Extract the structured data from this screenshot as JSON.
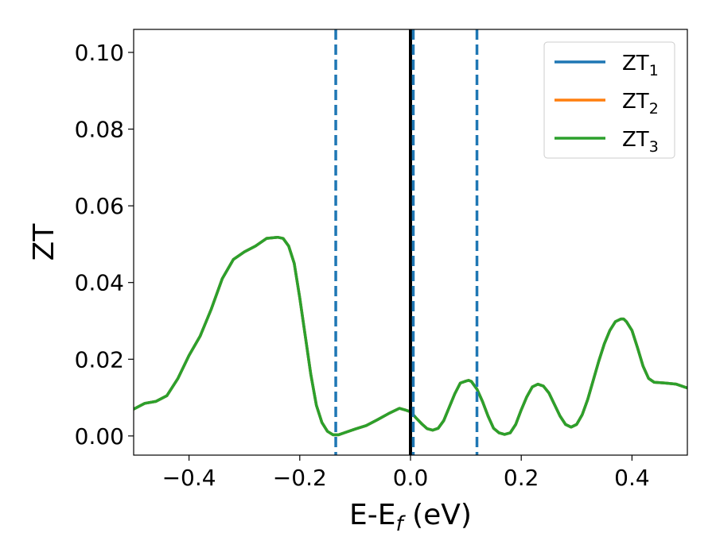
{
  "chart_data": {
    "type": "line",
    "xlabel": {
      "main": "E-E",
      "sub": "f",
      "suffix": " (eV)"
    },
    "ylabel": "ZT",
    "xlim": [
      -0.5,
      0.5
    ],
    "ylim": [
      -0.005,
      0.106
    ],
    "grid": false,
    "legend_position": "top-right",
    "xticks": [
      {
        "value": -0.4,
        "label": "−0.4"
      },
      {
        "value": -0.2,
        "label": "−0.2"
      },
      {
        "value": 0.0,
        "label": "0.0"
      },
      {
        "value": 0.2,
        "label": "0.2"
      },
      {
        "value": 0.4,
        "label": "0.4"
      }
    ],
    "yticks": [
      {
        "value": 0.0,
        "label": "0.00"
      },
      {
        "value": 0.02,
        "label": "0.02"
      },
      {
        "value": 0.04,
        "label": "0.04"
      },
      {
        "value": 0.06,
        "label": "0.06"
      },
      {
        "value": 0.08,
        "label": "0.08"
      },
      {
        "value": 0.1,
        "label": "0.10"
      }
    ],
    "vlines": [
      {
        "x": -0.135,
        "style": "dashed",
        "color": "#1f77b4"
      },
      {
        "x": 0.0,
        "style": "solid",
        "color": "#000000"
      },
      {
        "x": 0.005,
        "style": "dashed",
        "color": "#1f77b4"
      },
      {
        "x": 0.12,
        "style": "dashed",
        "color": "#1f77b4"
      }
    ],
    "x": [
      -0.5,
      -0.48,
      -0.46,
      -0.44,
      -0.42,
      -0.4,
      -0.38,
      -0.36,
      -0.34,
      -0.32,
      -0.3,
      -0.28,
      -0.26,
      -0.24,
      -0.23,
      -0.22,
      -0.21,
      -0.2,
      -0.19,
      -0.18,
      -0.17,
      -0.16,
      -0.15,
      -0.14,
      -0.13,
      -0.12,
      -0.1,
      -0.08,
      -0.06,
      -0.04,
      -0.02,
      -0.01,
      0.0,
      0.01,
      0.02,
      0.03,
      0.04,
      0.05,
      0.06,
      0.07,
      0.08,
      0.09,
      0.1,
      0.105,
      0.11,
      0.12,
      0.13,
      0.14,
      0.15,
      0.16,
      0.17,
      0.18,
      0.19,
      0.2,
      0.21,
      0.22,
      0.23,
      0.24,
      0.25,
      0.26,
      0.27,
      0.28,
      0.29,
      0.3,
      0.31,
      0.32,
      0.33,
      0.34,
      0.35,
      0.36,
      0.37,
      0.38,
      0.385,
      0.39,
      0.4,
      0.41,
      0.42,
      0.43,
      0.44,
      0.46,
      0.48,
      0.5
    ],
    "series": [
      {
        "name": "ZT",
        "sub": "1",
        "color": "#1f77b4",
        "values": [
          0.007,
          0.0085,
          0.009,
          0.0105,
          0.015,
          0.021,
          0.026,
          0.033,
          0.041,
          0.046,
          0.048,
          0.0495,
          0.0515,
          0.0518,
          0.0515,
          0.0495,
          0.045,
          0.036,
          0.026,
          0.016,
          0.008,
          0.0035,
          0.0012,
          0.0003,
          0.0003,
          0.0008,
          0.0018,
          0.0027,
          0.0042,
          0.0058,
          0.0072,
          0.0068,
          0.0063,
          0.0047,
          0.0032,
          0.0019,
          0.0015,
          0.002,
          0.004,
          0.0075,
          0.011,
          0.0138,
          0.0143,
          0.0145,
          0.0142,
          0.0122,
          0.009,
          0.0052,
          0.002,
          0.0008,
          0.0004,
          0.0008,
          0.003,
          0.0068,
          0.0102,
          0.0128,
          0.0135,
          0.013,
          0.0112,
          0.0082,
          0.0052,
          0.003,
          0.0023,
          0.003,
          0.0055,
          0.0095,
          0.0145,
          0.0195,
          0.024,
          0.0275,
          0.0298,
          0.0305,
          0.0305,
          0.0298,
          0.0275,
          0.023,
          0.0182,
          0.015,
          0.014,
          0.0138,
          0.0135,
          0.0125
        ]
      },
      {
        "name": "ZT",
        "sub": "2",
        "color": "#ff7f0e",
        "values": [
          0.007,
          0.0085,
          0.009,
          0.0105,
          0.015,
          0.021,
          0.026,
          0.033,
          0.041,
          0.046,
          0.048,
          0.0495,
          0.0515,
          0.0518,
          0.0515,
          0.0495,
          0.045,
          0.036,
          0.026,
          0.016,
          0.008,
          0.0035,
          0.0012,
          0.0003,
          0.0003,
          0.0008,
          0.0018,
          0.0027,
          0.0042,
          0.0058,
          0.0072,
          0.0068,
          0.0063,
          0.0047,
          0.0032,
          0.0019,
          0.0015,
          0.002,
          0.004,
          0.0075,
          0.011,
          0.0138,
          0.0143,
          0.0145,
          0.0142,
          0.0122,
          0.009,
          0.0052,
          0.002,
          0.0008,
          0.0004,
          0.0008,
          0.003,
          0.0068,
          0.0102,
          0.0128,
          0.0135,
          0.013,
          0.0112,
          0.0082,
          0.0052,
          0.003,
          0.0023,
          0.003,
          0.0055,
          0.0095,
          0.0145,
          0.0195,
          0.024,
          0.0275,
          0.0298,
          0.0305,
          0.0305,
          0.0298,
          0.0275,
          0.023,
          0.0182,
          0.015,
          0.014,
          0.0138,
          0.0135,
          0.0125
        ]
      },
      {
        "name": "ZT",
        "sub": "3",
        "color": "#2ca02c",
        "values": [
          0.007,
          0.0085,
          0.009,
          0.0105,
          0.015,
          0.021,
          0.026,
          0.033,
          0.041,
          0.046,
          0.048,
          0.0495,
          0.0515,
          0.0518,
          0.0515,
          0.0495,
          0.045,
          0.036,
          0.026,
          0.016,
          0.008,
          0.0035,
          0.0012,
          0.0003,
          0.0003,
          0.0008,
          0.0018,
          0.0027,
          0.0042,
          0.0058,
          0.0072,
          0.0068,
          0.0063,
          0.0047,
          0.0032,
          0.0019,
          0.0015,
          0.002,
          0.004,
          0.0075,
          0.011,
          0.0138,
          0.0143,
          0.0145,
          0.0142,
          0.0122,
          0.009,
          0.0052,
          0.002,
          0.0008,
          0.0004,
          0.0008,
          0.003,
          0.0068,
          0.0102,
          0.0128,
          0.0135,
          0.013,
          0.0112,
          0.0082,
          0.0052,
          0.003,
          0.0023,
          0.003,
          0.0055,
          0.0095,
          0.0145,
          0.0195,
          0.024,
          0.0275,
          0.0298,
          0.0305,
          0.0305,
          0.0298,
          0.0275,
          0.023,
          0.0182,
          0.015,
          0.014,
          0.0138,
          0.0135,
          0.0125
        ]
      }
    ]
  }
}
